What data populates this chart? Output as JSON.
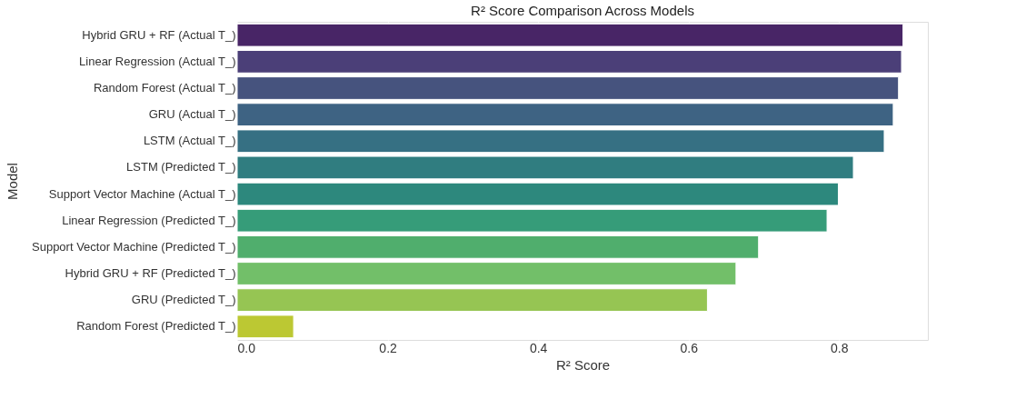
{
  "chart_data": {
    "type": "bar",
    "orientation": "horizontal",
    "title": "R² Score Comparison Across Models",
    "xlabel": "R² Score",
    "ylabel": "Model",
    "categories": [
      "Hybrid GRU + RF (Actual T_)",
      "Linear Regression (Actual T_)",
      "Random Forest (Actual T_)",
      "GRU (Actual T_)",
      "LSTM (Actual T_)",
      "LSTM (Predicted T_)",
      "Support Vector Machine (Actual T_)",
      "Linear Regression (Predicted T_)",
      "Support Vector Machine (Predicted T_)",
      "Hybrid GRU + RF (Predicted T_)",
      "GRU (Predicted T_)",
      "Random Forest (Predicted T_)"
    ],
    "values": [
      0.885,
      0.883,
      0.879,
      0.872,
      0.86,
      0.819,
      0.799,
      0.784,
      0.693,
      0.663,
      0.625,
      0.075
    ],
    "colors": [
      "#482566",
      "#4b3f78",
      "#46537e",
      "#3e6383",
      "#367083",
      "#307d80",
      "#2d887d",
      "#369c79",
      "#50ae6d",
      "#72bf69",
      "#96c553",
      "#bcc833"
    ],
    "xlim": [
      0,
      0.918
    ],
    "xticks": [
      {
        "value": 0,
        "label": "0.0"
      },
      0.2,
      0.4,
      0.6,
      0.8
    ],
    "grid": "x"
  }
}
